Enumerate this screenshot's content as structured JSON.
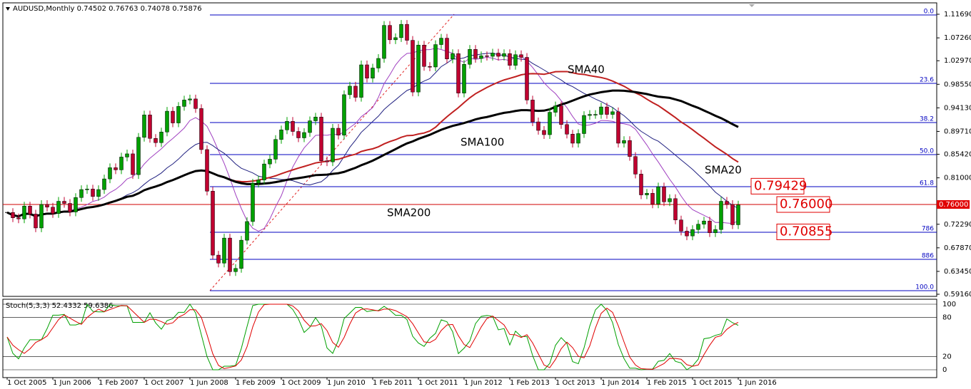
{
  "chart_data": {
    "type": "candlestick",
    "title": "AUDUSD,Monthly  0.74502 0.76763 0.74078 0.75876",
    "categories": [
      "1 Oct 2005",
      null,
      null,
      null,
      null,
      null,
      null,
      null,
      "1 Jun 2006",
      null,
      null,
      null,
      null,
      null,
      null,
      null,
      "1 Feb 2007",
      null,
      null,
      null,
      null,
      null,
      null,
      null,
      "1 Oct 2007",
      null,
      null,
      null,
      null,
      null,
      null,
      null,
      "1 Jun 2008",
      null,
      null,
      null,
      null,
      null,
      null,
      null,
      "1 Feb 2009",
      null,
      null,
      null,
      null,
      null,
      null,
      null,
      "1 Oct 2009",
      null,
      null,
      null,
      null,
      null,
      null,
      null,
      "1 Jun 2010",
      null,
      null,
      null,
      null,
      null,
      null,
      null,
      "1 Feb 2011",
      null,
      null,
      null,
      null,
      null,
      null,
      null,
      "1 Oct 2011",
      null,
      null,
      null,
      null,
      null,
      null,
      null,
      "1 Jun 2012",
      null,
      null,
      null,
      null,
      null,
      null,
      null,
      "1 Feb 2013",
      null,
      null,
      null,
      null,
      null,
      null,
      null,
      "1 Oct 2013",
      null,
      null,
      null,
      null,
      null,
      null,
      null,
      "1 Jun 2014",
      null,
      null,
      null,
      null,
      null,
      null,
      null,
      "1 Feb 2015",
      null,
      null,
      null,
      null,
      null,
      null,
      null,
      "1 Oct 2015",
      null,
      null,
      null,
      null,
      null,
      null,
      null,
      "1 Jun 2016"
    ],
    "values": [
      0.745,
      0.735,
      0.733,
      0.757,
      0.742,
      0.716,
      0.76,
      0.755,
      0.743,
      0.766,
      0.762,
      0.746,
      0.773,
      0.788,
      0.789,
      0.775,
      0.788,
      0.808,
      0.829,
      0.825,
      0.849,
      0.855,
      0.816,
      0.886,
      0.928,
      0.884,
      0.876,
      0.896,
      0.935,
      0.913,
      0.944,
      0.956,
      0.958,
      0.94,
      0.863,
      0.785,
      0.665,
      0.65,
      0.697,
      0.634,
      0.64,
      0.693,
      0.728,
      0.8,
      0.806,
      0.836,
      0.845,
      0.882,
      0.9,
      0.916,
      0.897,
      0.885,
      0.895,
      0.917,
      0.924,
      0.842,
      0.84,
      0.903,
      0.89,
      0.966,
      0.982,
      0.961,
      1.022,
      0.997,
      1.016,
      1.034,
      1.096,
      1.069,
      1.073,
      1.098,
      1.068,
      0.971,
      1.059,
      1.019,
      1.018,
      1.06,
      1.072,
      1.033,
      1.043,
      0.969,
      1.023,
      1.051,
      1.034,
      1.039,
      1.038,
      1.044,
      1.038,
      1.043,
      1.021,
      1.041,
      1.036,
      0.956,
      0.915,
      0.899,
      0.891,
      0.933,
      0.945,
      0.91,
      0.892,
      0.875,
      0.893,
      0.927,
      0.929,
      0.929,
      0.943,
      0.929,
      0.934,
      0.875,
      0.88,
      0.85,
      0.817,
      0.778,
      0.781,
      0.761,
      0.793,
      0.765,
      0.771,
      0.731,
      0.71,
      0.701,
      0.713,
      0.723,
      0.729,
      0.707,
      0.713,
      0.766,
      0.76,
      0.722,
      0.759
    ],
    "up_color": "#00a000",
    "down_color": "#c00030",
    "ylim": [
      0.5916,
      1.1169
    ],
    "yticks": [
      {
        "value": 1.1169,
        "label": "1.11690"
      },
      {
        "value": 1.0726,
        "label": "1.07260"
      },
      {
        "value": 1.0297,
        "label": "1.02970"
      },
      {
        "value": 0.9855,
        "label": "0.98550"
      },
      {
        "value": 0.9413,
        "label": "0.94130"
      },
      {
        "value": 0.8971,
        "label": "0.89710"
      },
      {
        "value": 0.8542,
        "label": "0.85420"
      },
      {
        "value": 0.81,
        "label": "0.81000"
      },
      {
        "value": 0.7229,
        "label": "0.72290"
      },
      {
        "value": 0.6787,
        "label": "0.67870"
      },
      {
        "value": 0.6345,
        "label": "0.63450"
      },
      {
        "value": 0.5916,
        "label": "0.59160"
      }
    ],
    "fib_levels": [
      {
        "value": 1.1156,
        "label": "0.0"
      },
      {
        "value": 0.9872,
        "label": "23.6"
      },
      {
        "value": 0.9137,
        "label": "38.2"
      },
      {
        "value": 0.8536,
        "label": "50.0"
      },
      {
        "value": 0.7934,
        "label": "61.8"
      },
      {
        "value": 0.7079,
        "label": "786"
      },
      {
        "value": 0.6571,
        "label": "886"
      },
      {
        "value": 0.5983,
        "label": "100.0"
      }
    ],
    "price_labels": [
      {
        "value": 0.79429,
        "label": "0.79429"
      },
      {
        "value": 0.76,
        "label": "0.76000"
      },
      {
        "value": 0.70855,
        "label": "0.70855"
      }
    ],
    "current_price": {
      "value": 0.76,
      "label": "0.76000"
    },
    "annotations": [
      "SMA40",
      "SMA100",
      "SMA20",
      "SMA200"
    ],
    "stoch": {
      "title": "Stoch(5,3,3) 52.4332 59.6386",
      "ylim": [
        0,
        100
      ],
      "yticks": [
        100,
        80,
        20,
        0
      ]
    }
  }
}
